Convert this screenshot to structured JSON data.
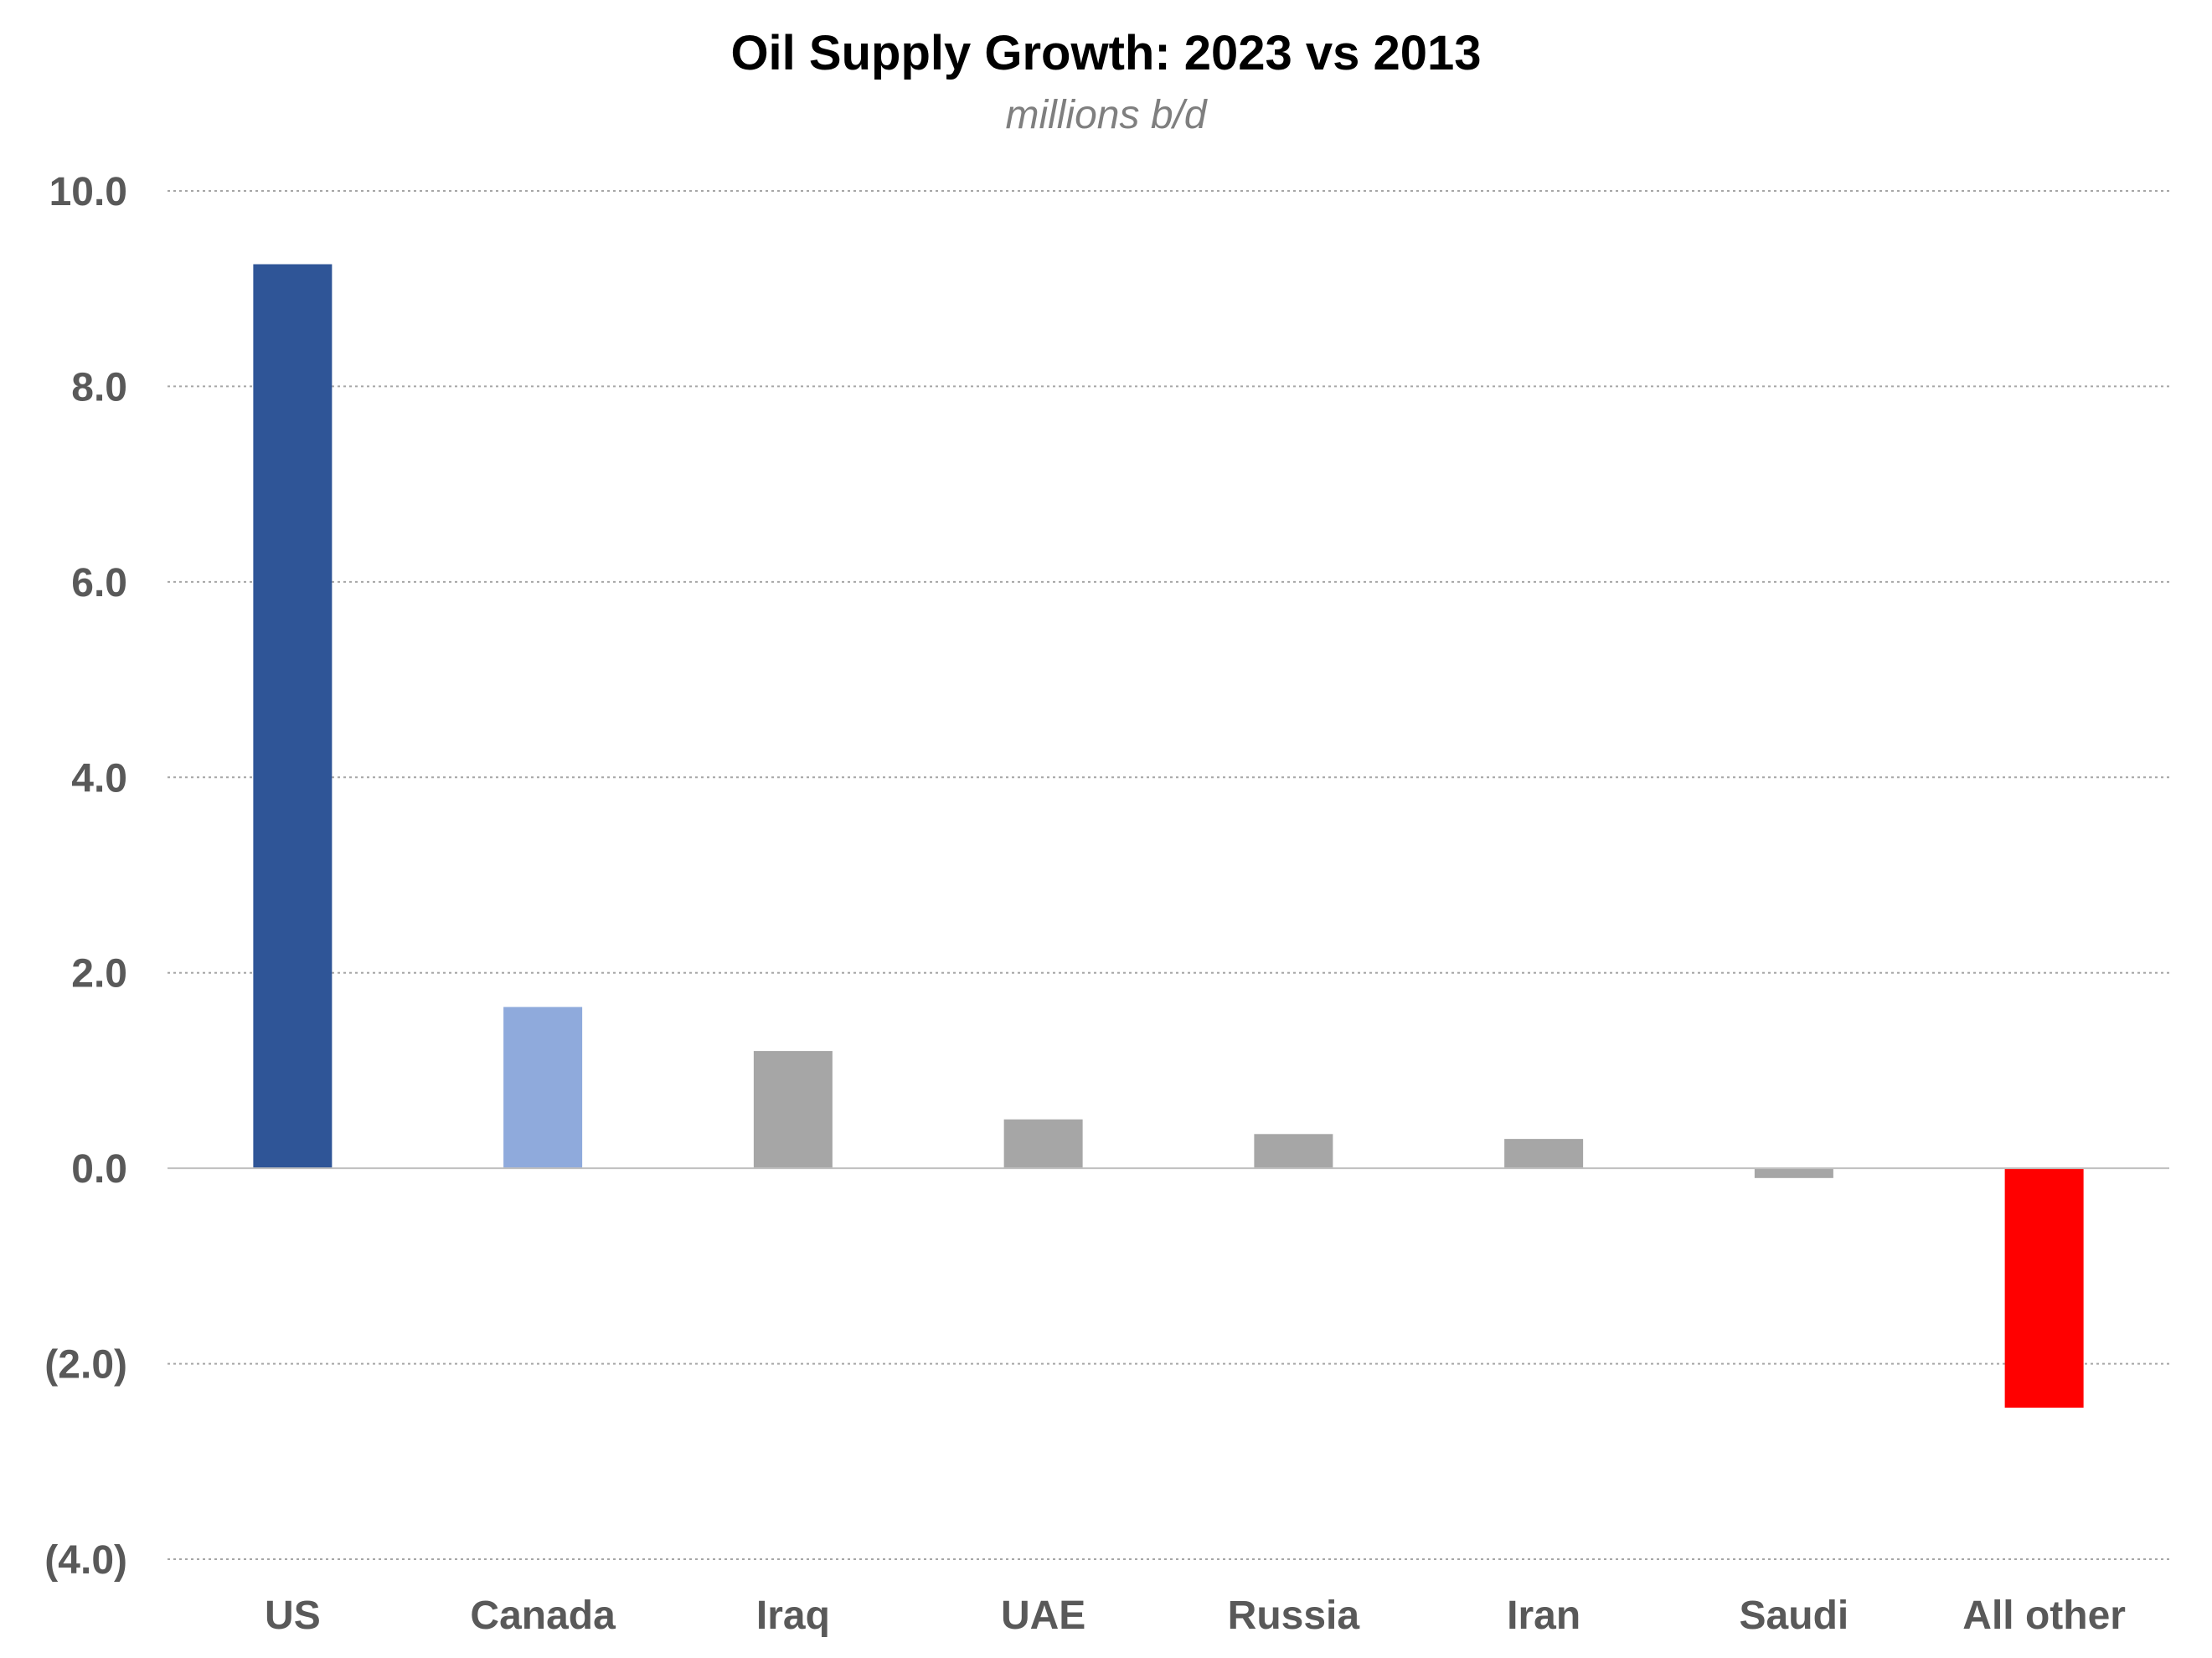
{
  "chart_data": {
    "type": "bar",
    "title": "Oil Supply Growth: 2023 vs 2013",
    "subtitle": "millions b/d",
    "xlabel": "",
    "ylabel": "",
    "categories": [
      "US",
      "Canada",
      "Iraq",
      "UAE",
      "Russia",
      "Iran",
      "Saudi",
      "All other"
    ],
    "values": [
      9.25,
      1.65,
      1.2,
      0.5,
      0.35,
      0.3,
      -0.1,
      -2.45
    ],
    "bar_colors": [
      "#2f5597",
      "#8faadc",
      "#a6a6a6",
      "#a6a6a6",
      "#a6a6a6",
      "#a6a6a6",
      "#a6a6a6",
      "#ff0000"
    ],
    "ylim": [
      -4,
      10
    ],
    "yticks": [
      10,
      8,
      6,
      4,
      2,
      0,
      -2,
      -4
    ],
    "ytick_labels": [
      "10.0",
      "8.0",
      "6.0",
      "4.0",
      "2.0",
      "0.0",
      "(2.0)",
      "(4.0)"
    ],
    "grid": true,
    "legend": "none"
  }
}
